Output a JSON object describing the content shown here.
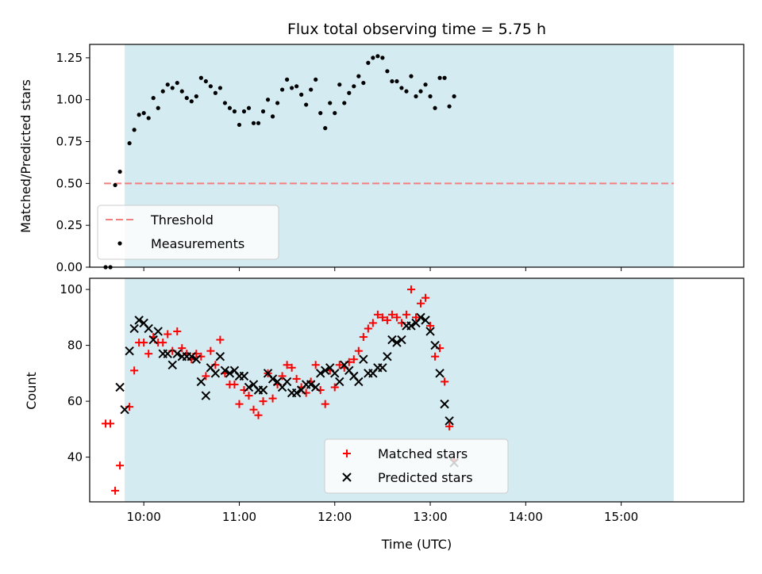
{
  "chart_data": [
    {
      "type": "scatter",
      "title": "Flux total observing time = 5.75 h",
      "xlabel": "",
      "ylabel": "Matched/Predicted stars",
      "xlim": [
        "09:26",
        "16:17"
      ],
      "ylim": [
        0,
        1.33
      ],
      "xticks": [
        "10:00",
        "11:00",
        "12:00",
        "13:00",
        "14:00",
        "15:00"
      ],
      "yticks": [
        "0.00",
        "0.25",
        "0.50",
        "0.75",
        "1.00",
        "1.25"
      ],
      "shaded_span": [
        "09:48",
        "15:33"
      ],
      "shade_color": "#d4ebf1",
      "legend": {
        "position": "lower-left",
        "entries": [
          "Threshold",
          "Measurements"
        ]
      },
      "threshold": {
        "name": "Threshold",
        "y": 0.5,
        "x_range": [
          "09:35",
          "15:33"
        ],
        "color": "#f47f7f",
        "style": "dashed"
      },
      "series": [
        {
          "name": "Measurements",
          "color": "#000000",
          "points": [
            [
              "09:36",
              0.0
            ],
            [
              "09:39",
              0.0
            ],
            [
              "09:42",
              0.49
            ],
            [
              "09:45",
              0.57
            ],
            [
              "09:51",
              0.74
            ],
            [
              "09:54",
              0.82
            ],
            [
              "09:57",
              0.91
            ],
            [
              "10:00",
              0.92
            ],
            [
              "10:03",
              0.89
            ],
            [
              "10:06",
              1.01
            ],
            [
              "10:09",
              0.95
            ],
            [
              "10:12",
              1.05
            ],
            [
              "10:15",
              1.09
            ],
            [
              "10:18",
              1.07
            ],
            [
              "10:21",
              1.1
            ],
            [
              "10:24",
              1.05
            ],
            [
              "10:27",
              1.01
            ],
            [
              "10:30",
              0.99
            ],
            [
              "10:33",
              1.02
            ],
            [
              "10:36",
              1.13
            ],
            [
              "10:39",
              1.11
            ],
            [
              "10:42",
              1.08
            ],
            [
              "10:45",
              1.04
            ],
            [
              "10:48",
              1.07
            ],
            [
              "10:51",
              0.98
            ],
            [
              "10:54",
              0.95
            ],
            [
              "10:57",
              0.93
            ],
            [
              "11:00",
              0.85
            ],
            [
              "11:03",
              0.93
            ],
            [
              "11:06",
              0.95
            ],
            [
              "11:09",
              0.86
            ],
            [
              "11:12",
              0.86
            ],
            [
              "11:15",
              0.93
            ],
            [
              "11:18",
              1.0
            ],
            [
              "11:21",
              0.9
            ],
            [
              "11:24",
              0.98
            ],
            [
              "11:27",
              1.06
            ],
            [
              "11:30",
              1.12
            ],
            [
              "11:33",
              1.07
            ],
            [
              "11:36",
              1.08
            ],
            [
              "11:39",
              1.03
            ],
            [
              "11:42",
              0.97
            ],
            [
              "11:45",
              1.06
            ],
            [
              "11:48",
              1.12
            ],
            [
              "11:51",
              0.92
            ],
            [
              "11:54",
              0.83
            ],
            [
              "11:57",
              0.98
            ],
            [
              "12:00",
              0.92
            ],
            [
              "12:03",
              1.09
            ],
            [
              "12:06",
              0.98
            ],
            [
              "12:09",
              1.04
            ],
            [
              "12:12",
              1.08
            ],
            [
              "12:15",
              1.14
            ],
            [
              "12:18",
              1.1
            ],
            [
              "12:21",
              1.22
            ],
            [
              "12:24",
              1.25
            ],
            [
              "12:27",
              1.26
            ],
            [
              "12:30",
              1.25
            ],
            [
              "12:33",
              1.17
            ],
            [
              "12:36",
              1.11
            ],
            [
              "12:39",
              1.11
            ],
            [
              "12:42",
              1.07
            ],
            [
              "12:45",
              1.05
            ],
            [
              "12:48",
              1.14
            ],
            [
              "12:51",
              1.02
            ],
            [
              "12:54",
              1.05
            ],
            [
              "12:57",
              1.09
            ],
            [
              "13:00",
              1.02
            ],
            [
              "13:03",
              0.95
            ],
            [
              "13:06",
              1.13
            ],
            [
              "13:09",
              1.13
            ],
            [
              "13:12",
              0.96
            ],
            [
              "13:15",
              1.02
            ]
          ]
        }
      ]
    },
    {
      "type": "scatter",
      "title": "",
      "xlabel": "Time (UTC)",
      "ylabel": "Count",
      "xlim": [
        "09:26",
        "16:17"
      ],
      "ylim": [
        24,
        104
      ],
      "xticks": [
        "10:00",
        "11:00",
        "12:00",
        "13:00",
        "14:00",
        "15:00"
      ],
      "yticks": [
        "40",
        "60",
        "80",
        "100"
      ],
      "shaded_span": [
        "09:48",
        "15:33"
      ],
      "shade_color": "#d4ebf1",
      "legend": {
        "position": "lower-center",
        "entries": [
          "Matched stars",
          "Predicted stars"
        ]
      },
      "series": [
        {
          "name": "Matched stars",
          "color": "#ff0000",
          "marker": "plus",
          "points": [
            [
              "09:36",
              52
            ],
            [
              "09:39",
              52
            ],
            [
              "09:42",
              28
            ],
            [
              "09:45",
              37
            ],
            [
              "09:51",
              58
            ],
            [
              "09:54",
              71
            ],
            [
              "09:57",
              81
            ],
            [
              "10:00",
              81
            ],
            [
              "10:03",
              77
            ],
            [
              "10:06",
              83
            ],
            [
              "10:09",
              81
            ],
            [
              "10:12",
              81
            ],
            [
              "10:15",
              84
            ],
            [
              "10:18",
              78
            ],
            [
              "10:21",
              85
            ],
            [
              "10:24",
              79
            ],
            [
              "10:27",
              77
            ],
            [
              "10:30",
              75
            ],
            [
              "10:33",
              77
            ],
            [
              "10:36",
              76
            ],
            [
              "10:39",
              69
            ],
            [
              "10:42",
              78
            ],
            [
              "10:45",
              73
            ],
            [
              "10:48",
              82
            ],
            [
              "10:51",
              70
            ],
            [
              "10:54",
              66
            ],
            [
              "10:57",
              66
            ],
            [
              "11:00",
              59
            ],
            [
              "11:03",
              64
            ],
            [
              "11:06",
              62
            ],
            [
              "11:09",
              57
            ],
            [
              "11:12",
              55
            ],
            [
              "11:15",
              60
            ],
            [
              "11:18",
              70
            ],
            [
              "11:21",
              61
            ],
            [
              "11:24",
              66
            ],
            [
              "11:27",
              69
            ],
            [
              "11:30",
              73
            ],
            [
              "11:33",
              72
            ],
            [
              "11:36",
              68
            ],
            [
              "11:39",
              65
            ],
            [
              "11:42",
              63
            ],
            [
              "11:45",
              67
            ],
            [
              "11:48",
              73
            ],
            [
              "11:51",
              64
            ],
            [
              "11:54",
              59
            ],
            [
              "11:57",
              71
            ],
            [
              "12:00",
              65
            ],
            [
              "12:03",
              73
            ],
            [
              "12:06",
              72
            ],
            [
              "12:09",
              74
            ],
            [
              "12:12",
              75
            ],
            [
              "12:15",
              78
            ],
            [
              "12:18",
              83
            ],
            [
              "12:21",
              86
            ],
            [
              "12:24",
              88
            ],
            [
              "12:27",
              91
            ],
            [
              "12:30",
              90
            ],
            [
              "12:33",
              89
            ],
            [
              "12:36",
              91
            ],
            [
              "12:39",
              90
            ],
            [
              "12:42",
              88
            ],
            [
              "12:45",
              91
            ],
            [
              "12:48",
              100
            ],
            [
              "12:51",
              90
            ],
            [
              "12:54",
              95
            ],
            [
              "12:57",
              97
            ],
            [
              "13:00",
              87
            ],
            [
              "13:03",
              76
            ],
            [
              "13:06",
              79
            ],
            [
              "13:09",
              67
            ],
            [
              "13:12",
              51
            ],
            [
              "13:15",
              39
            ]
          ]
        },
        {
          "name": "Predicted stars",
          "color": "#000000",
          "marker": "x",
          "points": [
            [
              "09:45",
              65
            ],
            [
              "09:48",
              57
            ],
            [
              "09:51",
              78
            ],
            [
              "09:54",
              86
            ],
            [
              "09:57",
              89
            ],
            [
              "10:00",
              88
            ],
            [
              "10:03",
              86
            ],
            [
              "10:06",
              82
            ],
            [
              "10:09",
              85
            ],
            [
              "10:12",
              77
            ],
            [
              "10:15",
              77
            ],
            [
              "10:18",
              73
            ],
            [
              "10:21",
              77
            ],
            [
              "10:24",
              76
            ],
            [
              "10:27",
              76
            ],
            [
              "10:30",
              76
            ],
            [
              "10:33",
              75
            ],
            [
              "10:36",
              67
            ],
            [
              "10:39",
              62
            ],
            [
              "10:42",
              72
            ],
            [
              "10:45",
              70
            ],
            [
              "10:48",
              76
            ],
            [
              "10:51",
              71
            ],
            [
              "10:54",
              70
            ],
            [
              "10:57",
              71
            ],
            [
              "11:00",
              69
            ],
            [
              "11:03",
              69
            ],
            [
              "11:06",
              65
            ],
            [
              "11:09",
              66
            ],
            [
              "11:12",
              64
            ],
            [
              "11:15",
              64
            ],
            [
              "11:18",
              70
            ],
            [
              "11:21",
              68
            ],
            [
              "11:24",
              67
            ],
            [
              "11:27",
              65
            ],
            [
              "11:30",
              67
            ],
            [
              "11:33",
              63
            ],
            [
              "11:36",
              63
            ],
            [
              "11:39",
              64
            ],
            [
              "11:42",
              66
            ],
            [
              "11:45",
              66
            ],
            [
              "11:48",
              65
            ],
            [
              "11:51",
              70
            ],
            [
              "11:54",
              71
            ],
            [
              "11:57",
              72
            ],
            [
              "12:00",
              70
            ],
            [
              "12:03",
              67
            ],
            [
              "12:06",
              73
            ],
            [
              "12:09",
              71
            ],
            [
              "12:12",
              69
            ],
            [
              "12:15",
              67
            ],
            [
              "12:18",
              75
            ],
            [
              "12:21",
              70
            ],
            [
              "12:24",
              70
            ],
            [
              "12:27",
              72
            ],
            [
              "12:30",
              72
            ],
            [
              "12:33",
              76
            ],
            [
              "12:36",
              82
            ],
            [
              "12:39",
              81
            ],
            [
              "12:42",
              82
            ],
            [
              "12:45",
              87
            ],
            [
              "12:48",
              87
            ],
            [
              "12:51",
              88
            ],
            [
              "12:54",
              90
            ],
            [
              "12:57",
              89
            ],
            [
              "13:00",
              85
            ],
            [
              "13:03",
              80
            ],
            [
              "13:06",
              70
            ],
            [
              "13:09",
              59
            ],
            [
              "13:12",
              53
            ],
            [
              "13:15",
              38
            ]
          ]
        }
      ]
    }
  ]
}
